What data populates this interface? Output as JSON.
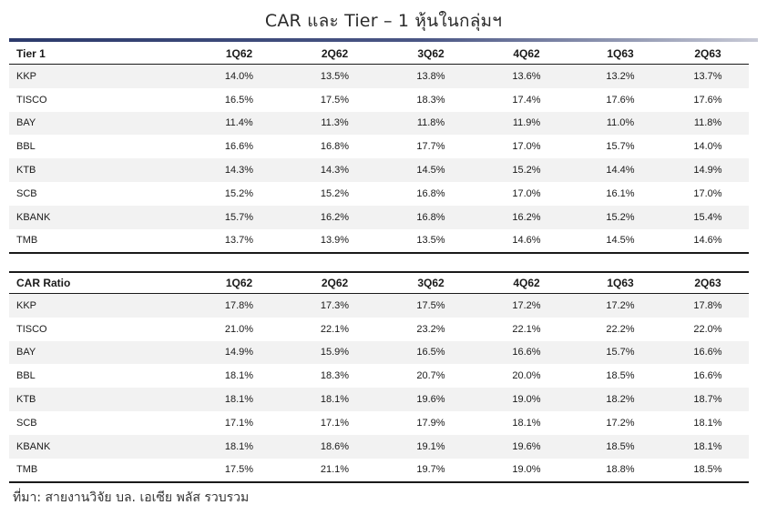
{
  "title": "CAR และ Tier – 1 หุ้นในกลุ่มฯ",
  "tier1": {
    "header": [
      "Tier 1",
      "1Q62",
      "2Q62",
      "3Q62",
      "4Q62",
      "1Q63",
      "2Q63"
    ],
    "rows": [
      [
        "KKP",
        "14.0%",
        "13.5%",
        "13.8%",
        "13.6%",
        "13.2%",
        "13.7%"
      ],
      [
        "TISCO",
        "16.5%",
        "17.5%",
        "18.3%",
        "17.4%",
        "17.6%",
        "17.6%"
      ],
      [
        "BAY",
        "11.4%",
        "11.3%",
        "11.8%",
        "11.9%",
        "11.0%",
        "11.8%"
      ],
      [
        "BBL",
        "16.6%",
        "16.8%",
        "17.7%",
        "17.0%",
        "15.7%",
        "14.0%"
      ],
      [
        "KTB",
        "14.3%",
        "14.3%",
        "14.5%",
        "15.2%",
        "14.4%",
        "14.9%"
      ],
      [
        "SCB",
        "15.2%",
        "15.2%",
        "16.8%",
        "17.0%",
        "16.1%",
        "17.0%"
      ],
      [
        "KBANK",
        "15.7%",
        "16.2%",
        "16.8%",
        "16.2%",
        "15.2%",
        "15.4%"
      ],
      [
        "TMB",
        "13.7%",
        "13.9%",
        "13.5%",
        "14.6%",
        "14.5%",
        "14.6%"
      ]
    ]
  },
  "car": {
    "header": [
      "CAR Ratio",
      "1Q62",
      "2Q62",
      "3Q62",
      "4Q62",
      "1Q63",
      "2Q63"
    ],
    "rows": [
      [
        "KKP",
        "17.8%",
        "17.3%",
        "17.5%",
        "17.2%",
        "17.2%",
        "17.8%"
      ],
      [
        "TISCO",
        "21.0%",
        "22.1%",
        "23.2%",
        "22.1%",
        "22.2%",
        "22.0%"
      ],
      [
        "BAY",
        "14.9%",
        "15.9%",
        "16.5%",
        "16.6%",
        "15.7%",
        "16.6%"
      ],
      [
        "BBL",
        "18.1%",
        "18.3%",
        "20.7%",
        "20.0%",
        "18.5%",
        "16.6%"
      ],
      [
        "KTB",
        "18.1%",
        "18.1%",
        "19.6%",
        "19.0%",
        "18.2%",
        "18.7%"
      ],
      [
        "SCB",
        "17.1%",
        "17.1%",
        "17.9%",
        "18.1%",
        "17.2%",
        "18.1%"
      ],
      [
        "KBANK",
        "18.1%",
        "18.6%",
        "19.1%",
        "19.6%",
        "18.5%",
        "18.1%"
      ],
      [
        "TMB",
        "17.5%",
        "21.1%",
        "19.7%",
        "19.0%",
        "18.8%",
        "18.5%"
      ]
    ]
  },
  "source": "ที่มา:  สายงานวิจัย บล. เอเซีย พลัส รวบรวม"
}
